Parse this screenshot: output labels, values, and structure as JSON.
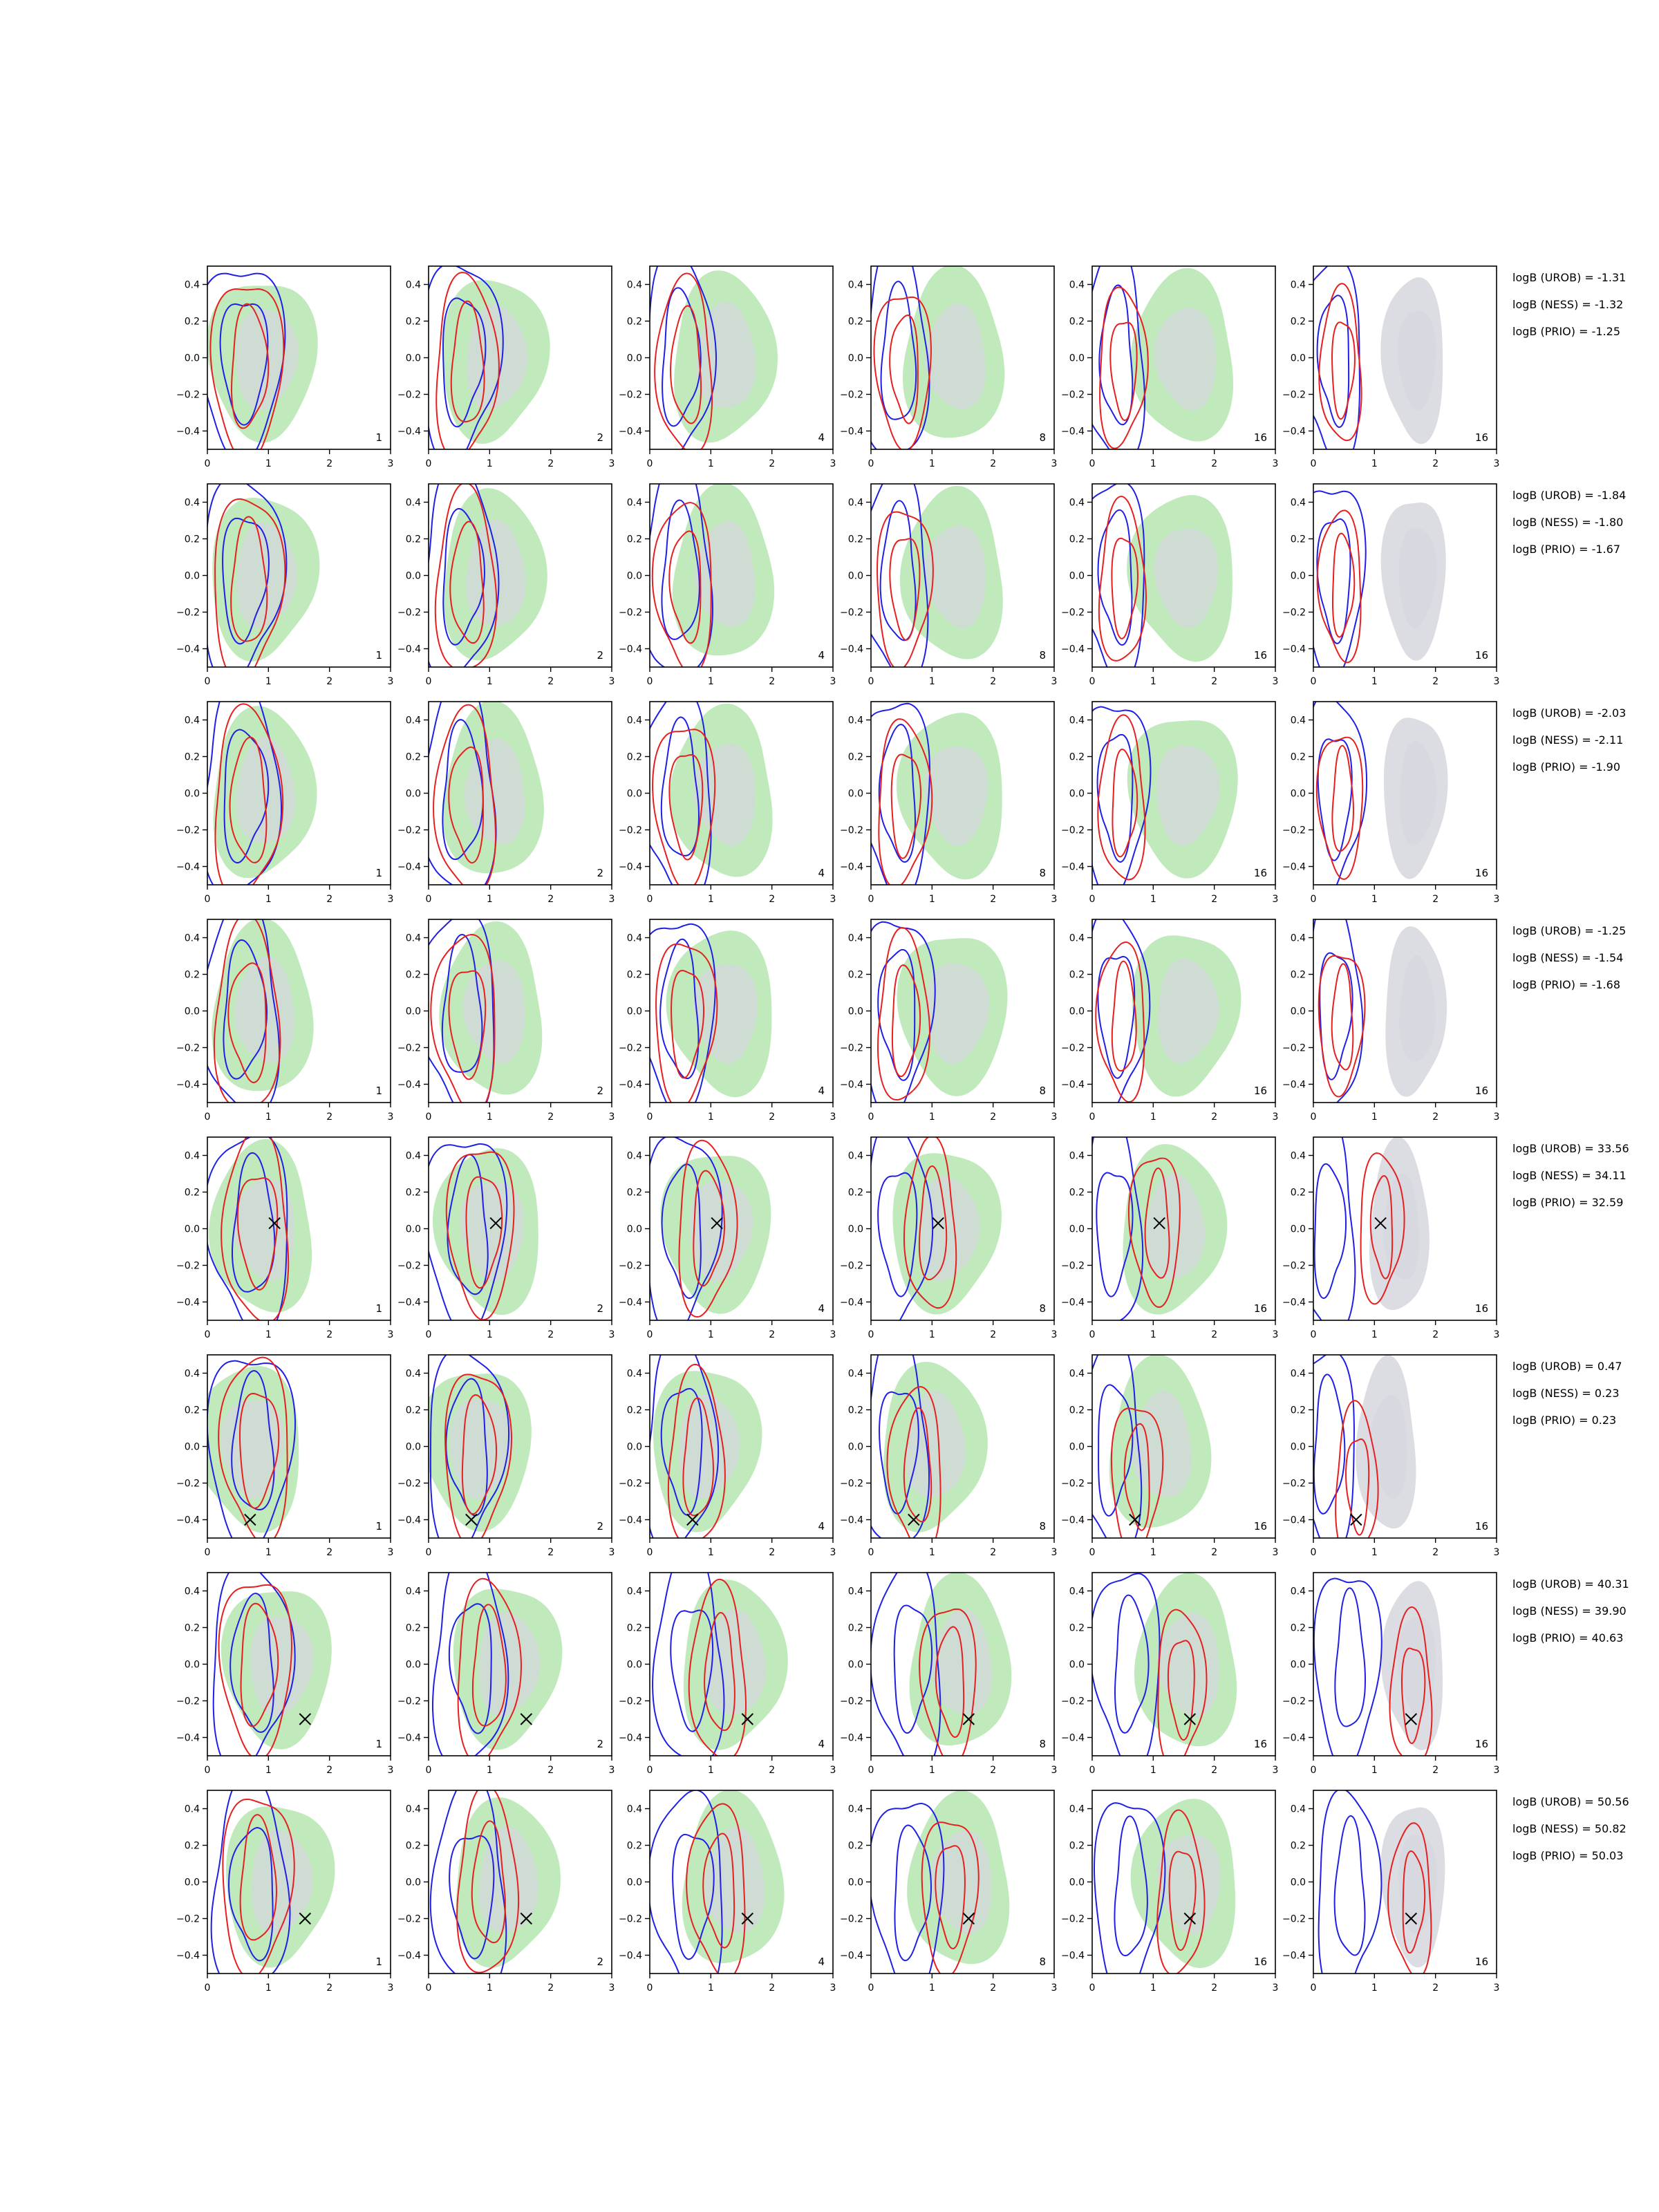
{
  "figure": {
    "columns": [
      "1",
      "2",
      "4",
      "8",
      "16",
      "16"
    ],
    "x_ticks": [
      "0",
      "1",
      "2",
      "3"
    ],
    "y_ticks": [
      "0.4",
      "0.2",
      "0.0",
      "−0.2",
      "−0.4"
    ],
    "colors": {
      "blue": "#1f1fe6",
      "red": "#e61f1f",
      "green": "#b9e8b5",
      "grey": "#d6d6de"
    }
  },
  "chart_data": {
    "type": "contour",
    "layout": "8 rows x 6 columns grid of 2D posterior contour panels",
    "xlim": [
      0,
      3
    ],
    "ylim": [
      -0.5,
      0.5
    ],
    "column_labels": [
      "1",
      "2",
      "4",
      "8",
      "16",
      "16"
    ],
    "rows": [
      {
        "logB": [
          "logB (UROB) = -1.31",
          "logB (NESS) = -1.32",
          "logB (PRIO) = -1.25"
        ],
        "marker": null
      },
      {
        "logB": [
          "logB (UROB) = -1.84",
          "logB (NESS) = -1.80",
          "logB (PRIO) = -1.67"
        ],
        "marker": null
      },
      {
        "logB": [
          "logB (UROB) = -2.03",
          "logB (NESS) = -2.11",
          "logB (PRIO) = -1.90"
        ],
        "marker": null
      },
      {
        "logB": [
          "logB (UROB) = -1.25",
          "logB (NESS) = -1.54",
          "logB (PRIO) = -1.68"
        ],
        "marker": null
      },
      {
        "logB": [
          "logB (UROB) = 33.56",
          "logB (NESS) = 34.11",
          "logB (PRIO) = 32.59"
        ],
        "marker": [
          1.1,
          0.03
        ]
      },
      {
        "logB": [
          "logB (UROB) = 0.47",
          "logB (NESS) = 0.23",
          "logB (PRIO) = 0.23"
        ],
        "marker": [
          0.7,
          -0.4
        ]
      },
      {
        "logB": [
          "logB (UROB) = 40.31",
          "logB (NESS) = 39.90",
          "logB (PRIO) = 40.63"
        ],
        "marker": [
          1.6,
          -0.3
        ]
      },
      {
        "logB": [
          "logB (UROB) = 50.56",
          "logB (NESS) = 50.82",
          "logB (PRIO) = 50.03"
        ],
        "marker": [
          1.6,
          -0.2
        ]
      }
    ]
  }
}
